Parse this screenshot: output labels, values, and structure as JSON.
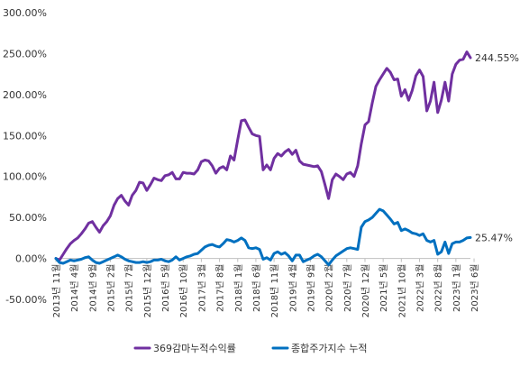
{
  "chart_data": {
    "type": "line",
    "title": "",
    "xlabel": "",
    "ylabel": "",
    "ylim": [
      -50,
      300
    ],
    "yticks": [
      "300.00%",
      "250.00%",
      "200.00%",
      "150.00%",
      "100.00%",
      "50.00%",
      "0.00%",
      "-50.00%"
    ],
    "grid": false,
    "legend_position": "bottom",
    "colors": {
      "series_0": "#7030A0",
      "series_1": "#0070C0"
    },
    "x_ticks": [
      {
        "label": "2013년 11월",
        "index": 0
      },
      {
        "label": "2014년 4월",
        "index": 5
      },
      {
        "label": "2014년 9월",
        "index": 10
      },
      {
        "label": "2015년 2월",
        "index": 15
      },
      {
        "label": "2015년 7월",
        "index": 20
      },
      {
        "label": "2015년 12월",
        "index": 25
      },
      {
        "label": "2016년 5월",
        "index": 30
      },
      {
        "label": "2016년 10월",
        "index": 35
      },
      {
        "label": "2017년 3월",
        "index": 40
      },
      {
        "label": "2017년 8월",
        "index": 45
      },
      {
        "label": "2018년 1월",
        "index": 50
      },
      {
        "label": "2018년 6월",
        "index": 55
      },
      {
        "label": "2018년 11월",
        "index": 60
      },
      {
        "label": "2019년 4월",
        "index": 65
      },
      {
        "label": "2019년 9월",
        "index": 70
      },
      {
        "label": "2020년 2월",
        "index": 75
      },
      {
        "label": "2020년 7월",
        "index": 80
      },
      {
        "label": "2020년 12월",
        "index": 85
      },
      {
        "label": "2021년 5월",
        "index": 90
      },
      {
        "label": "2021년 10월",
        "index": 95
      },
      {
        "label": "2022년 3월",
        "index": 100
      },
      {
        "label": "2022년 8월",
        "index": 105
      },
      {
        "label": "2023년 1월",
        "index": 110
      },
      {
        "label": "2023년 6월",
        "index": 115
      }
    ],
    "series": [
      {
        "name": "369감마누적수익률",
        "end_label": "244.55%",
        "values": [
          0,
          -2,
          5,
          12,
          18,
          22,
          25,
          30,
          36,
          43,
          45,
          38,
          32,
          40,
          45,
          52,
          65,
          73,
          77,
          70,
          65,
          77,
          83,
          93,
          92,
          83,
          90,
          98,
          96,
          95,
          101,
          102,
          105,
          97,
          97,
          105,
          104,
          104,
          103,
          108,
          118,
          120,
          119,
          113,
          104,
          110,
          112,
          108,
          125,
          120,
          145,
          168,
          169,
          160,
          152,
          150,
          149,
          108,
          114,
          108,
          122,
          128,
          125,
          130,
          133,
          127,
          132,
          119,
          115,
          114,
          113,
          112,
          113,
          106,
          90,
          73,
          96,
          103,
          100,
          96,
          103,
          105,
          100,
          113,
          140,
          163,
          167,
          190,
          210,
          218,
          225,
          232,
          227,
          218,
          219,
          198,
          206,
          193,
          205,
          223,
          230,
          222,
          180,
          192,
          215,
          178,
          193,
          215,
          192,
          225,
          237,
          242,
          243,
          252,
          245
        ]
      },
      {
        "name": "종합주가지수 누적",
        "end_label": "25.47%",
        "values": [
          0,
          -5,
          -6,
          -4,
          -2,
          -3,
          -2,
          -1,
          1,
          2,
          -2,
          -5,
          -6,
          -4,
          -2,
          0,
          2,
          4,
          2,
          -1,
          -3,
          -4,
          -5,
          -5,
          -4,
          -5,
          -4,
          -2,
          -2,
          -1,
          -3,
          -4,
          -2,
          2,
          -2,
          0,
          2,
          3,
          5,
          6,
          10,
          14,
          16,
          17,
          15,
          14,
          18,
          23,
          22,
          20,
          22,
          25,
          22,
          13,
          12,
          13,
          11,
          -1,
          1,
          -2,
          6,
          8,
          5,
          7,
          3,
          -3,
          4,
          4,
          -4,
          -2,
          0,
          3,
          5,
          2,
          -3,
          -8,
          -2,
          3,
          6,
          9,
          12,
          13,
          12,
          11,
          38,
          45,
          47,
          50,
          55,
          60,
          58,
          53,
          48,
          42,
          44,
          34,
          36,
          34,
          31,
          30,
          28,
          30,
          22,
          20,
          22,
          5,
          8,
          20,
          6,
          18,
          20,
          20,
          22,
          25,
          25.5
        ]
      }
    ]
  }
}
